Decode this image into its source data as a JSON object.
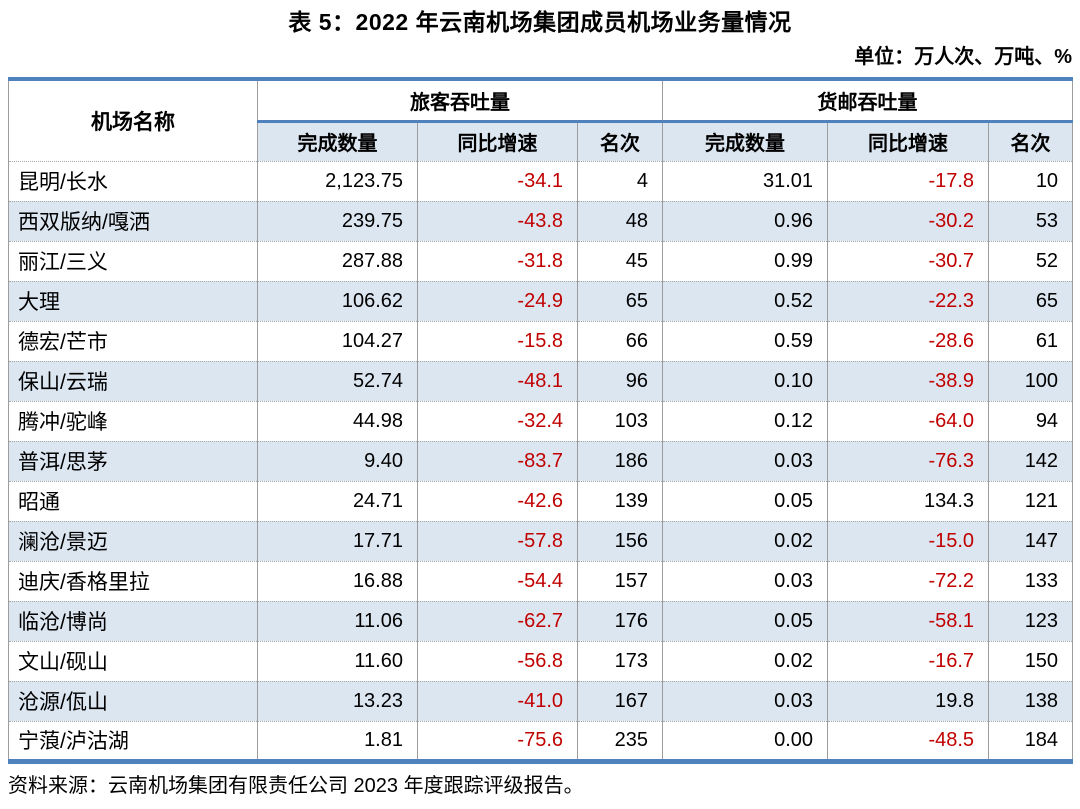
{
  "title": "表 5：2022 年云南机场集团成员机场业务量情况",
  "unit_note": "单位：万人次、万吨、%",
  "source_note": "资料来源：云南机场集团有限责任公司 2023 年度跟踪评级报告。",
  "colors": {
    "accent_blue": "#4f81bd",
    "row_alt_blue": "#dce6f1",
    "negative_red": "#c00000"
  },
  "table": {
    "airport_header": "机场名称",
    "group_passenger": "旅客吞吐量",
    "group_cargo": "货邮吞吐量",
    "sub_volume": "完成数量",
    "sub_growth": "同比增速",
    "sub_rank": "名次",
    "rows": [
      {
        "airport": "昆明/长水",
        "pax_volume": "2,123.75",
        "pax_growth": "-34.1",
        "pax_rank": "4",
        "cargo_volume": "31.01",
        "cargo_growth": "-17.8",
        "cargo_rank": "10"
      },
      {
        "airport": "西双版纳/嘎洒",
        "pax_volume": "239.75",
        "pax_growth": "-43.8",
        "pax_rank": "48",
        "cargo_volume": "0.96",
        "cargo_growth": "-30.2",
        "cargo_rank": "53"
      },
      {
        "airport": "丽江/三义",
        "pax_volume": "287.88",
        "pax_growth": "-31.8",
        "pax_rank": "45",
        "cargo_volume": "0.99",
        "cargo_growth": "-30.7",
        "cargo_rank": "52"
      },
      {
        "airport": "大理",
        "pax_volume": "106.62",
        "pax_growth": "-24.9",
        "pax_rank": "65",
        "cargo_volume": "0.52",
        "cargo_growth": "-22.3",
        "cargo_rank": "65"
      },
      {
        "airport": "德宏/芒市",
        "pax_volume": "104.27",
        "pax_growth": "-15.8",
        "pax_rank": "66",
        "cargo_volume": "0.59",
        "cargo_growth": "-28.6",
        "cargo_rank": "61"
      },
      {
        "airport": "保山/云瑞",
        "pax_volume": "52.74",
        "pax_growth": "-48.1",
        "pax_rank": "96",
        "cargo_volume": "0.10",
        "cargo_growth": "-38.9",
        "cargo_rank": "100"
      },
      {
        "airport": "腾冲/驼峰",
        "pax_volume": "44.98",
        "pax_growth": "-32.4",
        "pax_rank": "103",
        "cargo_volume": "0.12",
        "cargo_growth": "-64.0",
        "cargo_rank": "94"
      },
      {
        "airport": "普洱/思茅",
        "pax_volume": "9.40",
        "pax_growth": "-83.7",
        "pax_rank": "186",
        "cargo_volume": "0.03",
        "cargo_growth": "-76.3",
        "cargo_rank": "142"
      },
      {
        "airport": "昭通",
        "pax_volume": "24.71",
        "pax_growth": "-42.6",
        "pax_rank": "139",
        "cargo_volume": "0.05",
        "cargo_growth": "134.3",
        "cargo_rank": "121"
      },
      {
        "airport": "澜沧/景迈",
        "pax_volume": "17.71",
        "pax_growth": "-57.8",
        "pax_rank": "156",
        "cargo_volume": "0.02",
        "cargo_growth": "-15.0",
        "cargo_rank": "147"
      },
      {
        "airport": "迪庆/香格里拉",
        "pax_volume": "16.88",
        "pax_growth": "-54.4",
        "pax_rank": "157",
        "cargo_volume": "0.03",
        "cargo_growth": "-72.2",
        "cargo_rank": "133"
      },
      {
        "airport": "临沧/博尚",
        "pax_volume": "11.06",
        "pax_growth": "-62.7",
        "pax_rank": "176",
        "cargo_volume": "0.05",
        "cargo_growth": "-58.1",
        "cargo_rank": "123"
      },
      {
        "airport": "文山/砚山",
        "pax_volume": "11.60",
        "pax_growth": "-56.8",
        "pax_rank": "173",
        "cargo_volume": "0.02",
        "cargo_growth": "-16.7",
        "cargo_rank": "150"
      },
      {
        "airport": "沧源/佤山",
        "pax_volume": "13.23",
        "pax_growth": "-41.0",
        "pax_rank": "167",
        "cargo_volume": "0.03",
        "cargo_growth": "19.8",
        "cargo_rank": "138"
      },
      {
        "airport": "宁蒗/泸沽湖",
        "pax_volume": "1.81",
        "pax_growth": "-75.6",
        "pax_rank": "235",
        "cargo_volume": "0.00",
        "cargo_growth": "-48.5",
        "cargo_rank": "184"
      }
    ]
  }
}
